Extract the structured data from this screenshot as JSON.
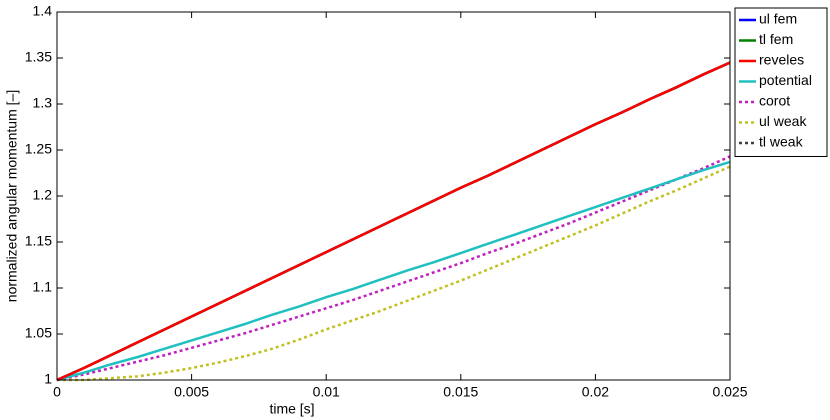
{
  "chart_data": {
    "type": "line",
    "xlabel": "time [s]",
    "ylabel": "normalized angular momentum [–]",
    "x": [
      0,
      0.001,
      0.002,
      0.003,
      0.004,
      0.005,
      0.006,
      0.007,
      0.008,
      0.009,
      0.01,
      0.011,
      0.012,
      0.013,
      0.014,
      0.015,
      0.016,
      0.017,
      0.018,
      0.019,
      0.02,
      0.021,
      0.022,
      0.023,
      0.024,
      0.025
    ],
    "series": [
      {
        "name": "ul fem",
        "color": "#0000ff",
        "linestyle": "solid",
        "values": [
          1,
          1.013,
          1.027,
          1.041,
          1.055,
          1.069,
          1.083,
          1.097,
          1.111,
          1.125,
          1.139,
          1.153,
          1.167,
          1.181,
          1.195,
          1.209,
          1.222,
          1.236,
          1.25,
          1.264,
          1.278,
          1.291,
          1.305,
          1.318,
          1.332,
          1.345
        ]
      },
      {
        "name": "tl fem",
        "color": "#008000",
        "linestyle": "solid",
        "values": [
          1,
          1.013,
          1.027,
          1.041,
          1.055,
          1.069,
          1.083,
          1.097,
          1.111,
          1.125,
          1.139,
          1.153,
          1.167,
          1.181,
          1.195,
          1.209,
          1.222,
          1.236,
          1.25,
          1.264,
          1.278,
          1.291,
          1.305,
          1.318,
          1.332,
          1.345
        ]
      },
      {
        "name": "reveles",
        "color": "#ff0000",
        "linestyle": "solid",
        "values": [
          1,
          1.013,
          1.027,
          1.041,
          1.055,
          1.069,
          1.083,
          1.097,
          1.111,
          1.125,
          1.139,
          1.153,
          1.167,
          1.181,
          1.195,
          1.209,
          1.222,
          1.236,
          1.25,
          1.264,
          1.278,
          1.291,
          1.305,
          1.318,
          1.332,
          1.345
        ]
      },
      {
        "name": "potential",
        "color": "#20c0c0",
        "linestyle": "solid",
        "values": [
          1,
          1.008,
          1.017,
          1.025,
          1.034,
          1.043,
          1.052,
          1.061,
          1.071,
          1.08,
          1.09,
          1.099,
          1.109,
          1.119,
          1.128,
          1.138,
          1.148,
          1.158,
          1.168,
          1.178,
          1.188,
          1.198,
          1.208,
          1.218,
          1.228,
          1.237
        ]
      },
      {
        "name": "corot",
        "color": "#c020c0",
        "linestyle": "dotted",
        "values": [
          1,
          1.006,
          1.013,
          1.02,
          1.027,
          1.035,
          1.043,
          1.051,
          1.06,
          1.069,
          1.078,
          1.087,
          1.097,
          1.107,
          1.117,
          1.127,
          1.138,
          1.148,
          1.159,
          1.17,
          1.182,
          1.194,
          1.206,
          1.218,
          1.23,
          1.243
        ]
      },
      {
        "name": "ul weak",
        "color": "#c0c020",
        "linestyle": "dotted",
        "values": [
          1,
          1.0,
          1.002,
          1.004,
          1.008,
          1.013,
          1.019,
          1.026,
          1.034,
          1.044,
          1.055,
          1.065,
          1.075,
          1.086,
          1.097,
          1.108,
          1.12,
          1.132,
          1.144,
          1.156,
          1.168,
          1.181,
          1.194,
          1.206,
          1.219,
          1.232
        ]
      },
      {
        "name": "tl weak",
        "color": "#404040",
        "linestyle": "dotted",
        "values": [
          1,
          1.013,
          1.027,
          1.041,
          1.055,
          1.069,
          1.083,
          1.097,
          1.111,
          1.125,
          1.139,
          1.153,
          1.167,
          1.181,
          1.195,
          1.209,
          1.222,
          1.236,
          1.25,
          1.264,
          1.278,
          1.291,
          1.305,
          1.318,
          1.332,
          1.345
        ]
      }
    ],
    "xlim": [
      0,
      0.025
    ],
    "xticks": [
      0,
      0.005,
      0.01,
      0.015,
      0.02,
      0.025
    ],
    "ylim": [
      1,
      1.4
    ],
    "yticks": [
      1,
      1.05,
      1.1,
      1.15,
      1.2,
      1.25,
      1.3,
      1.35,
      1.4
    ],
    "grid": false,
    "legend": "outside-top-right"
  }
}
